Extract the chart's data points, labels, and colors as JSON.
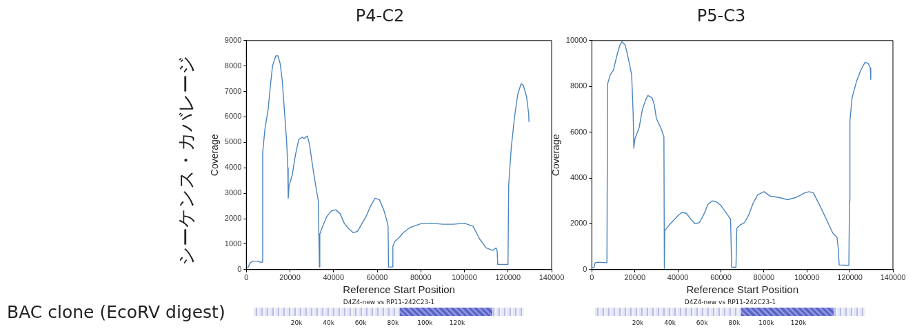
{
  "chart_data": [
    {
      "type": "line",
      "title": "P4-C2",
      "xlabel": "Reference Start Position",
      "ylabel": "Coverage",
      "xlim": [
        0,
        140000
      ],
      "xticks": [
        0,
        20000,
        40000,
        60000,
        80000,
        100000,
        120000,
        140000
      ],
      "ylim": [
        0,
        9000
      ],
      "yticks": [
        0,
        1000,
        2000,
        3000,
        4000,
        5000,
        6000,
        7000,
        8000,
        9000
      ],
      "grid": false,
      "legend": false,
      "marker": "none",
      "line_style": "solid",
      "annotations": [
        "シーケンス・カバレージ",
        "BAC clone (EcoRV digest)",
        "D4Z4-new vs RP11-242C23-1",
        "20k",
        "40k",
        "60k",
        "80k",
        "100k",
        "120k"
      ],
      "series": [
        {
          "color": "#4c85c0",
          "x": [
            0,
            1000,
            1500,
            3000,
            5000,
            7000,
            7200,
            7500,
            8500,
            10000,
            11000,
            12000,
            13500,
            14500,
            15500,
            16500,
            17500,
            18500,
            19000,
            19200,
            19600,
            21000,
            22500,
            24000,
            25500,
            26500,
            28000,
            29000,
            30500,
            32000,
            33000,
            33500,
            33700,
            35000,
            37000,
            39000,
            41000,
            43000,
            45000,
            47000,
            49000,
            51000,
            53000,
            55000,
            57000,
            59000,
            61000,
            63000,
            64500,
            65000,
            65200,
            67000,
            67200,
            68000,
            70000,
            72000,
            75000,
            80000,
            85000,
            90000,
            95000,
            100000,
            104000,
            107000,
            110000,
            113000,
            114500,
            115000,
            115300,
            120000,
            120300,
            121500,
            123000,
            124500,
            126000,
            127000,
            128500,
            129500,
            129600
          ],
          "values": [
            100,
            100,
            250,
            330,
            330,
            280,
            300,
            4600,
            5500,
            6300,
            7200,
            8000,
            8400,
            8400,
            8100,
            7400,
            6200,
            5000,
            4000,
            2800,
            3300,
            3700,
            4500,
            5100,
            5200,
            5150,
            5250,
            4900,
            4000,
            3200,
            2700,
            100,
            1400,
            1700,
            2100,
            2300,
            2350,
            2200,
            1800,
            1600,
            1450,
            1500,
            1800,
            2100,
            2500,
            2800,
            2750,
            2350,
            1900,
            1700,
            100,
            100,
            900,
            1100,
            1250,
            1450,
            1650,
            1800,
            1820,
            1780,
            1780,
            1820,
            1700,
            1200,
            850,
            750,
            850,
            750,
            200,
            200,
            3300,
            4800,
            6000,
            6900,
            7300,
            7250,
            6800,
            6100,
            5800
          ]
        }
      ]
    },
    {
      "type": "line",
      "title": "P5-C3",
      "xlabel": "Reference Start Position",
      "ylabel": "Coverage",
      "xlim": [
        0,
        140000
      ],
      "xticks": [
        0,
        20000,
        40000,
        60000,
        80000,
        100000,
        120000,
        140000
      ],
      "ylim": [
        0,
        10000
      ],
      "yticks": [
        0,
        2000,
        4000,
        6000,
        8000,
        10000
      ],
      "grid": false,
      "legend": false,
      "marker": "none",
      "line_style": "solid",
      "annotations": [
        "D4Z4-new vs RP11-242C23-1",
        "20k",
        "40k",
        "60k",
        "80k",
        "100k",
        "120k"
      ],
      "series": [
        {
          "color": "#4c85c0",
          "x": [
            0,
            1000,
            1500,
            3000,
            7000,
            7300,
            8500,
            10000,
            11500,
            13000,
            14000,
            15500,
            17000,
            18500,
            19200,
            19500,
            20000,
            22000,
            23500,
            25000,
            26000,
            28000,
            29000,
            30000,
            32000,
            33500,
            33700,
            33900,
            36000,
            38000,
            40000,
            42000,
            44000,
            46000,
            48000,
            50000,
            52000,
            54000,
            56000,
            58000,
            60000,
            63000,
            64500,
            65000,
            67000,
            67400,
            69000,
            71000,
            73000,
            75000,
            77000,
            80000,
            83000,
            87000,
            91000,
            95000,
            99000,
            101000,
            103000,
            106000,
            109000,
            112000,
            114000,
            114500,
            115000,
            119500,
            119800,
            120000,
            121000,
            123000,
            125000,
            127000,
            128500,
            129500,
            129700
          ],
          "values": [
            80,
            80,
            300,
            320,
            300,
            8100,
            8500,
            8700,
            9300,
            9800,
            9950,
            9800,
            9200,
            8500,
            6800,
            5300,
            5700,
            6200,
            7000,
            7400,
            7600,
            7500,
            7200,
            6600,
            6200,
            5800,
            50,
            1700,
            1950,
            2150,
            2350,
            2500,
            2450,
            2200,
            2000,
            2050,
            2400,
            2850,
            3000,
            2950,
            2800,
            2400,
            2200,
            100,
            100,
            1800,
            1950,
            2050,
            2400,
            2900,
            3250,
            3400,
            3200,
            3150,
            3050,
            3150,
            3350,
            3400,
            3350,
            2800,
            2200,
            1600,
            1400,
            1000,
            200,
            180,
            3000,
            6500,
            7500,
            8200,
            8700,
            9050,
            9000,
            8800,
            8300
          ]
        }
      ]
    }
  ]
}
